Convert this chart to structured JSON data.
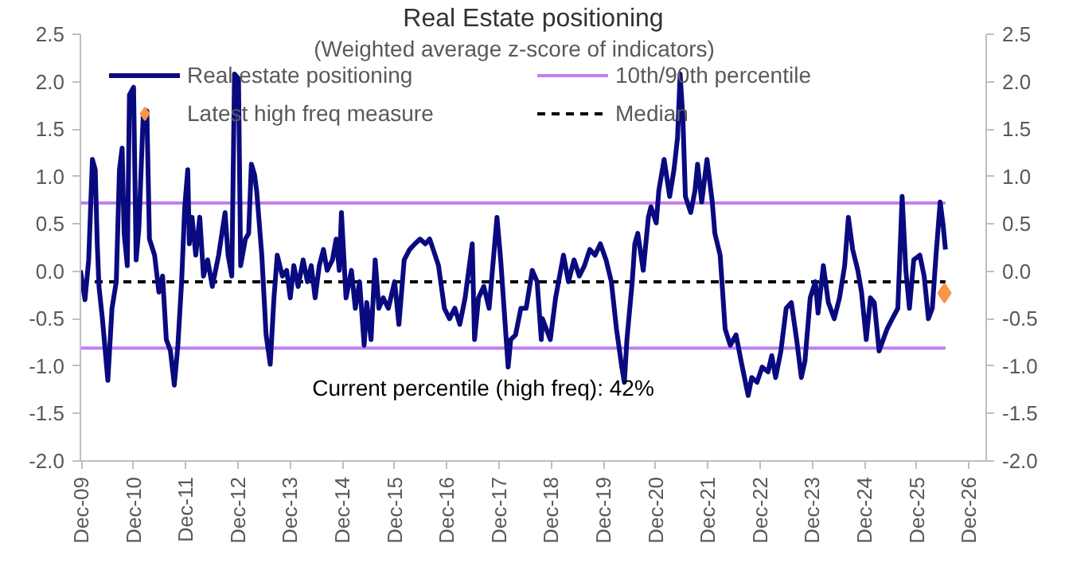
{
  "chart_data": {
    "type": "line",
    "title": "Real Estate positioning",
    "subtitle": "(Weighted average z-score of indicators)",
    "annotations": [
      "Current percentile (high freq): 42%"
    ],
    "xlim": [
      "2009-11-25",
      "2027-04-01"
    ],
    "xticks": [
      {
        "value": "2009-12-01",
        "label": "Dec-09"
      },
      {
        "value": "2010-12-01",
        "label": "Dec-10"
      },
      {
        "value": "2011-12-01",
        "label": "Dec-11"
      },
      {
        "value": "2012-12-01",
        "label": "Dec-12"
      },
      {
        "value": "2013-12-01",
        "label": "Dec-13"
      },
      {
        "value": "2014-12-01",
        "label": "Dec-14"
      },
      {
        "value": "2015-12-01",
        "label": "Dec-15"
      },
      {
        "value": "2016-12-01",
        "label": "Dec-16"
      },
      {
        "value": "2017-12-01",
        "label": "Dec-17"
      },
      {
        "value": "2018-12-01",
        "label": "Dec-18"
      },
      {
        "value": "2019-12-01",
        "label": "Dec-19"
      },
      {
        "value": "2020-12-01",
        "label": "Dec-20"
      },
      {
        "value": "2021-12-01",
        "label": "Dec-21"
      },
      {
        "value": "2022-12-01",
        "label": "Dec-22"
      },
      {
        "value": "2023-12-01",
        "label": "Dec-23"
      },
      {
        "value": "2024-12-01",
        "label": "Dec-24"
      },
      {
        "value": "2025-12-01",
        "label": "Dec-25"
      },
      {
        "value": "2026-12-01",
        "label": "Dec-26"
      }
    ],
    "ylim": [
      -2.0,
      2.5
    ],
    "yticks": [
      {
        "value": -2,
        "label": "-2.0"
      },
      -1.5,
      {
        "value": -1,
        "label": "-1.0"
      },
      -0.5,
      {
        "value": 0,
        "label": "0.0"
      },
      0.5,
      {
        "value": 1,
        "label": "1.0"
      },
      1.5,
      {
        "value": 2,
        "label": "2.0"
      },
      2.5
    ],
    "y2lim": [
      -2.0,
      2.5
    ],
    "y2ticks": [
      {
        "value": -2,
        "label": "-2.0"
      },
      -1.5,
      {
        "value": -1,
        "label": "-1.0"
      },
      -0.5,
      {
        "value": 0,
        "label": "0.0"
      },
      0.5,
      {
        "value": 1,
        "label": "1.0"
      },
      1.5,
      {
        "value": 2,
        "label": "2.0"
      },
      2.5
    ],
    "legend": "top",
    "ref_lines": [
      {
        "axis": "y",
        "value": 0.72,
        "label": "10th/90th percentile",
        "color": "#c080f0",
        "line_style": "solid"
      },
      {
        "axis": "y",
        "value": -0.81,
        "color": "#c080f0",
        "line_style": "solid"
      },
      {
        "axis": "y",
        "value": -0.11,
        "label": "Median",
        "color": "#000000",
        "line_style": "dashed"
      }
    ],
    "series": [
      {
        "name": "Real estate positioning",
        "color": "#0a0a80",
        "x": [
          "2009-11-25",
          "2009-12-27",
          "2010-01-22",
          "2010-02-17",
          "2010-03-09",
          "2010-03-23",
          "2010-04-04",
          "2010-04-28",
          "2010-06-05",
          "2010-07-04",
          "2010-08-03",
          "2010-08-25",
          "2010-09-13",
          "2010-09-27",
          "2010-10-19",
          "2010-11-03",
          "2010-12-02",
          "2010-12-20",
          "2011-01-08",
          "2011-02-07",
          "2011-03-05",
          "2011-03-23",
          "2011-04-28",
          "2011-05-28",
          "2011-06-23",
          "2011-07-19",
          "2011-08-17",
          "2011-09-13",
          "2011-10-08",
          "2011-11-03",
          "2011-11-25",
          "2011-12-16",
          "2011-12-27",
          "2012-01-15",
          "2012-02-10",
          "2012-03-09",
          "2012-04-04",
          "2012-05-03",
          "2012-06-05",
          "2012-07-19",
          "2012-09-02",
          "2012-09-23",
          "2012-10-19",
          "2012-11-07",
          "2012-12-05",
          "2012-12-20",
          "2013-01-22",
          "2013-02-14",
          "2013-03-05",
          "2013-03-27",
          "2013-04-11",
          "2013-05-17",
          "2013-06-16",
          "2013-07-15",
          "2013-08-10",
          "2013-09-02",
          "2013-10-08",
          "2013-11-07",
          "2013-12-02",
          "2013-12-27",
          "2014-01-26",
          "2014-03-02",
          "2014-04-01",
          "2014-04-28",
          "2014-05-25",
          "2014-06-23",
          "2014-07-22",
          "2014-08-17",
          "2014-09-23",
          "2014-10-19",
          "2014-11-10",
          "2014-11-25",
          "2014-12-27",
          "2015-02-03",
          "2015-03-02",
          "2015-04-01",
          "2015-05-03",
          "2015-05-21",
          "2015-06-20",
          "2015-07-19",
          "2015-08-14",
          "2015-09-13",
          "2015-10-19",
          "2015-12-02",
          "2016-01-01",
          "2016-02-07",
          "2016-03-16",
          "2016-04-22",
          "2016-05-28",
          "2016-07-04",
          "2016-08-03",
          "2016-08-28",
          "2016-10-04",
          "2016-11-14",
          "2016-12-20",
          "2017-01-26",
          "2017-03-02",
          "2017-04-08",
          "2017-05-28",
          "2017-06-13",
          "2017-07-11",
          "2017-08-17",
          "2017-09-23",
          "2017-11-17",
          "2017-12-13",
          "2018-02-03",
          "2018-02-21",
          "2018-03-27",
          "2018-05-03",
          "2018-06-09",
          "2018-07-22",
          "2018-08-25",
          "2018-09-23",
          "2018-10-01",
          "2018-11-25",
          "2019-01-01",
          "2019-02-25",
          "2019-04-01",
          "2019-05-10",
          "2019-06-16",
          "2019-07-22",
          "2019-08-28",
          "2019-10-04",
          "2019-11-10",
          "2019-12-20",
          "2020-01-26",
          "2020-03-02",
          "2020-04-08",
          "2020-04-26",
          "2020-05-14",
          "2020-06-20",
          "2020-07-08",
          "2020-07-29",
          "2020-09-05",
          "2020-10-11",
          "2020-10-29",
          "2020-12-05",
          "2020-12-23",
          "2021-01-29",
          "2021-03-09",
          "2021-04-08",
          "2021-05-03",
          "2021-05-21",
          "2021-06-09",
          "2021-06-27",
          "2021-08-03",
          "2021-09-02",
          "2021-09-20",
          "2021-10-19",
          "2021-11-25",
          "2022-01-01",
          "2022-01-19",
          "2022-02-25",
          "2022-04-01",
          "2022-05-07",
          "2022-06-16",
          "2022-07-22",
          "2022-09-09",
          "2022-10-04",
          "2022-11-10",
          "2022-12-16",
          "2023-01-26",
          "2023-02-21",
          "2023-03-20",
          "2023-04-26",
          "2023-06-02",
          "2023-07-08",
          "2023-08-14",
          "2023-09-16",
          "2023-10-11",
          "2023-11-17",
          "2023-12-23",
          "2024-01-11",
          "2024-02-17",
          "2024-03-23",
          "2024-05-03",
          "2024-06-09",
          "2024-07-15",
          "2024-08-10",
          "2024-09-09",
          "2024-10-15",
          "2024-11-10",
          "2024-12-13",
          "2025-01-11",
          "2025-02-07",
          "2025-03-13",
          "2025-05-07",
          "2025-06-13",
          "2025-07-22",
          "2025-08-21",
          "2025-09-16",
          "2025-10-11",
          "2025-11-10",
          "2025-12-23",
          "2026-01-22",
          "2026-02-21",
          "2026-03-20",
          "2026-04-15",
          "2026-05-14",
          "2026-06-02",
          "2026-06-20"
        ],
        "values": [
          0.01,
          -0.3,
          0.12,
          1.18,
          1.07,
          0.29,
          -0.16,
          -0.5,
          -1.15,
          -0.39,
          -0.11,
          1.07,
          1.3,
          0.4,
          0.06,
          1.86,
          1.94,
          0.12,
          0.45,
          1.63,
          1.69,
          0.34,
          0.17,
          -0.22,
          -0.05,
          -0.72,
          -0.84,
          -1.2,
          -0.78,
          -0.11,
          0.68,
          1.07,
          0.29,
          0.57,
          0.17,
          0.57,
          -0.05,
          0.12,
          -0.16,
          0.17,
          0.62,
          0.17,
          -0.05,
          2.08,
          2.03,
          0.06,
          0.34,
          0.4,
          1.13,
          1.02,
          0.85,
          0.17,
          -0.67,
          -0.98,
          -0.28,
          0.17,
          -0.05,
          0.01,
          -0.28,
          0.06,
          -0.16,
          0.12,
          -0.11,
          0.06,
          -0.28,
          0.06,
          0.23,
          0.01,
          0.12,
          0.34,
          0.01,
          0.62,
          -0.28,
          0.01,
          -0.39,
          -0.11,
          -0.78,
          -0.33,
          -0.72,
          0.12,
          -0.39,
          -0.28,
          -0.39,
          -0.11,
          -0.56,
          0.12,
          0.23,
          0.29,
          0.34,
          0.29,
          0.34,
          0.23,
          0.06,
          -0.39,
          -0.5,
          -0.39,
          -0.56,
          -0.28,
          0.29,
          -0.72,
          -0.28,
          -0.16,
          -0.39,
          0.57,
          0.12,
          -1.01,
          -0.72,
          -0.67,
          -0.39,
          -0.39,
          0.01,
          -0.11,
          -0.72,
          -0.5,
          -0.72,
          -0.28,
          0.17,
          -0.11,
          0.12,
          -0.05,
          0.06,
          0.23,
          0.17,
          0.29,
          0.12,
          -0.11,
          -0.61,
          -1.01,
          -1.17,
          -0.72,
          -0.11,
          0.29,
          0.4,
          0.01,
          0.57,
          0.68,
          0.51,
          0.85,
          1.18,
          0.79,
          1.07,
          1.41,
          2.08,
          1.63,
          0.79,
          0.62,
          0.85,
          1.13,
          0.73,
          1.18,
          0.73,
          0.4,
          0.17,
          -0.61,
          -0.78,
          -0.67,
          -0.95,
          -1.31,
          -1.12,
          -1.17,
          -1.01,
          -1.06,
          -0.89,
          -1.12,
          -0.84,
          -0.39,
          -0.33,
          -0.72,
          -1.12,
          -0.95,
          -0.28,
          -0.11,
          -0.44,
          0.06,
          -0.33,
          -0.5,
          -0.28,
          0.06,
          0.57,
          0.23,
          0.01,
          -0.22,
          -0.72,
          -0.28,
          -0.33,
          -0.84,
          -0.61,
          -0.5,
          -0.39,
          0.79,
          0.01,
          -0.39,
          0.12,
          0.17,
          -0.05,
          -0.5,
          -0.39,
          0.17,
          0.73,
          0.51,
          0.23
        ]
      },
      {
        "name": "Latest high freq measure",
        "type": "scatter",
        "color": "#f79646",
        "marker": "diamond",
        "x": [
          "2026-06-13"
        ],
        "values": [
          -0.23
        ]
      }
    ]
  }
}
